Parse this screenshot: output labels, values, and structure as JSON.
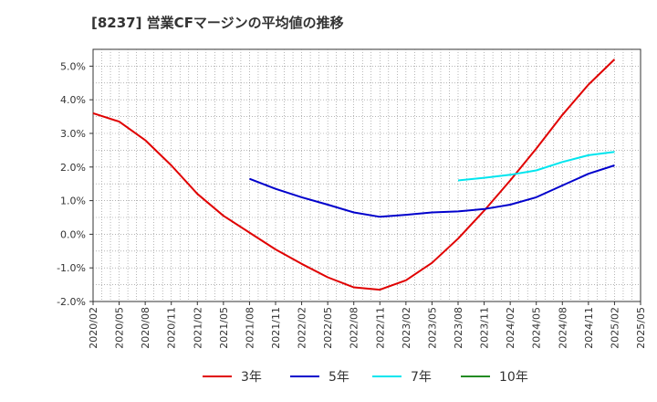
{
  "title": "[8237]  営業CFマージンの平均値の推移",
  "chart_data": {
    "type": "line",
    "title": "[8237]  営業CFマージンの平均値の推移",
    "xlabel": "",
    "ylabel": "",
    "x_ticks": [
      "2020/02",
      "2020/05",
      "2020/08",
      "2020/11",
      "2021/02",
      "2021/05",
      "2021/08",
      "2021/11",
      "2022/02",
      "2022/05",
      "2022/08",
      "2022/11",
      "2023/02",
      "2023/05",
      "2023/08",
      "2023/11",
      "2024/02",
      "2024/05",
      "2024/08",
      "2024/11",
      "2025/02",
      "2025/05"
    ],
    "y_ticks": [
      "-2.0%",
      "-1.0%",
      "0.0%",
      "1.0%",
      "2.0%",
      "3.0%",
      "4.0%",
      "5.0%"
    ],
    "ylim": [
      -2.0,
      5.5
    ],
    "grid": true,
    "legend_position": "bottom",
    "series": [
      {
        "name": "3年",
        "color": "#e00000",
        "x": [
          "2020/02",
          "2020/05",
          "2020/08",
          "2020/11",
          "2021/02",
          "2021/05",
          "2021/08",
          "2021/11",
          "2022/02",
          "2022/05",
          "2022/08",
          "2022/11",
          "2023/02",
          "2023/05",
          "2023/08",
          "2023/11",
          "2024/02",
          "2024/05",
          "2024/08",
          "2024/11",
          "2025/02"
        ],
        "values": [
          3.6,
          3.35,
          2.8,
          2.05,
          1.2,
          0.55,
          0.05,
          -0.45,
          -0.88,
          -1.28,
          -1.58,
          -1.65,
          -1.37,
          -0.85,
          -0.13,
          0.7,
          1.6,
          2.55,
          3.55,
          4.45,
          5.2
        ]
      },
      {
        "name": "5年",
        "color": "#0000cc",
        "x": [
          "2021/08",
          "2021/11",
          "2022/02",
          "2022/05",
          "2022/08",
          "2022/11",
          "2023/02",
          "2023/05",
          "2023/08",
          "2023/11",
          "2024/02",
          "2024/05",
          "2024/08",
          "2024/11",
          "2025/02"
        ],
        "values": [
          1.65,
          1.35,
          1.1,
          0.88,
          0.65,
          0.52,
          0.58,
          0.65,
          0.68,
          0.75,
          0.88,
          1.1,
          1.45,
          1.8,
          2.05
        ]
      },
      {
        "name": "7年",
        "color": "#00e5ee",
        "x": [
          "2023/08",
          "2023/11",
          "2024/02",
          "2024/05",
          "2024/08",
          "2024/11",
          "2025/02"
        ],
        "values": [
          1.6,
          1.68,
          1.77,
          1.9,
          2.15,
          2.35,
          2.45
        ]
      },
      {
        "name": "10年",
        "color": "#228b22",
        "x": [],
        "values": []
      }
    ]
  }
}
